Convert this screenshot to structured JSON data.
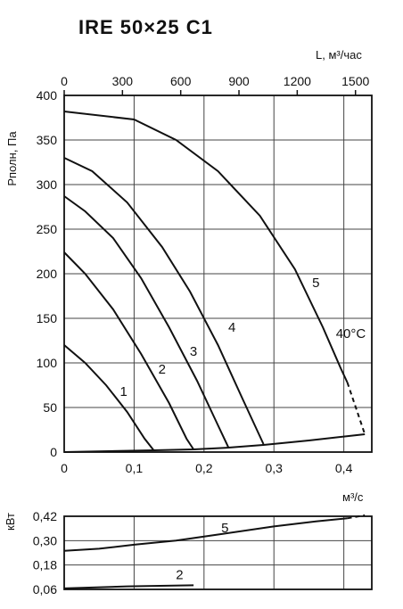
{
  "title": "IRE 50×25 C1",
  "chart_data": [
    {
      "type": "line",
      "ylabel": "Pполн, Па",
      "x_top_label": "L, м³/час",
      "x_bottom_unit": "м³/с",
      "x_ticks": [
        "0",
        "0,1",
        "0,2",
        "0,3",
        "0,4"
      ],
      "x_top_ticks": [
        "0",
        "300",
        "600",
        "900",
        "1200",
        "1500"
      ],
      "y_ticks": [
        "0",
        "50",
        "100",
        "150",
        "200",
        "250",
        "300",
        "350",
        "400"
      ],
      "xlim": [
        0,
        0.44
      ],
      "ylim": [
        0,
        400
      ],
      "grid": true,
      "series": [
        {
          "name": "1",
          "points": [
            [
              0,
              120
            ],
            [
              0.03,
              100
            ],
            [
              0.06,
              75
            ],
            [
              0.09,
              45
            ],
            [
              0.115,
              15
            ],
            [
              0.128,
              2
            ]
          ]
        },
        {
          "name": "2",
          "points": [
            [
              0,
              224
            ],
            [
              0.03,
              200
            ],
            [
              0.07,
              160
            ],
            [
              0.11,
              110
            ],
            [
              0.15,
              55
            ],
            [
              0.175,
              15
            ],
            [
              0.185,
              3
            ]
          ]
        },
        {
          "name": "3",
          "points": [
            [
              0,
              287
            ],
            [
              0.03,
              270
            ],
            [
              0.07,
              240
            ],
            [
              0.11,
              195
            ],
            [
              0.15,
              140
            ],
            [
              0.19,
              80
            ],
            [
              0.22,
              30
            ],
            [
              0.235,
              5
            ]
          ]
        },
        {
          "name": "4",
          "points": [
            [
              0,
              330
            ],
            [
              0.04,
              315
            ],
            [
              0.09,
              280
            ],
            [
              0.14,
              230
            ],
            [
              0.18,
              180
            ],
            [
              0.22,
              120
            ],
            [
              0.255,
              60
            ],
            [
              0.285,
              9
            ]
          ]
        },
        {
          "name": "5",
          "points": [
            [
              0,
              382
            ],
            [
              0.1,
              373
            ],
            [
              0.16,
              350
            ],
            [
              0.22,
              315
            ],
            [
              0.28,
              265
            ],
            [
              0.33,
              205
            ],
            [
              0.37,
              140
            ],
            [
              0.395,
              95
            ],
            [
              0.405,
              78
            ]
          ]
        },
        {
          "name": "5 (dashed)",
          "points": [
            [
              0.405,
              78
            ],
            [
              0.43,
              20
            ]
          ]
        },
        {
          "name": "system",
          "points": [
            [
              0,
              0
            ],
            [
              0.128,
              2
            ],
            [
              0.185,
              3
            ],
            [
              0.235,
              5
            ],
            [
              0.285,
              8
            ],
            [
              0.35,
              13
            ],
            [
              0.43,
              20
            ]
          ]
        }
      ],
      "annotations": [
        {
          "text": "1",
          "x": 0.085,
          "y": 63
        },
        {
          "text": "2",
          "x": 0.14,
          "y": 88
        },
        {
          "text": "3",
          "x": 0.185,
          "y": 108
        },
        {
          "text": "4",
          "x": 0.24,
          "y": 135
        },
        {
          "text": "5",
          "x": 0.36,
          "y": 185
        },
        {
          "text": "40°C",
          "x": 0.41,
          "y": 128
        }
      ]
    },
    {
      "type": "line",
      "ylabel": "кВт",
      "y_ticks": [
        "0,06",
        "0,18",
        "0,30",
        "0,42"
      ],
      "ylim": [
        0.06,
        0.42
      ],
      "xlim": [
        0,
        0.44
      ],
      "grid": true,
      "series": [
        {
          "name": "5",
          "points": [
            [
              0,
              0.25
            ],
            [
              0.05,
              0.26
            ],
            [
              0.1,
              0.28
            ],
            [
              0.16,
              0.3
            ],
            [
              0.22,
              0.33
            ],
            [
              0.3,
              0.37
            ],
            [
              0.36,
              0.395
            ],
            [
              0.405,
              0.41
            ]
          ]
        },
        {
          "name": "5 (dashed)",
          "points": [
            [
              0.405,
              0.41
            ],
            [
              0.43,
              0.425
            ]
          ]
        },
        {
          "name": "2",
          "points": [
            [
              0,
              0.065
            ],
            [
              0.09,
              0.075
            ],
            [
              0.185,
              0.08
            ]
          ]
        }
      ],
      "annotations": [
        {
          "text": "5",
          "x": 0.23,
          "y": 0.34
        },
        {
          "text": "2",
          "x": 0.165,
          "y": 0.11
        }
      ]
    }
  ]
}
